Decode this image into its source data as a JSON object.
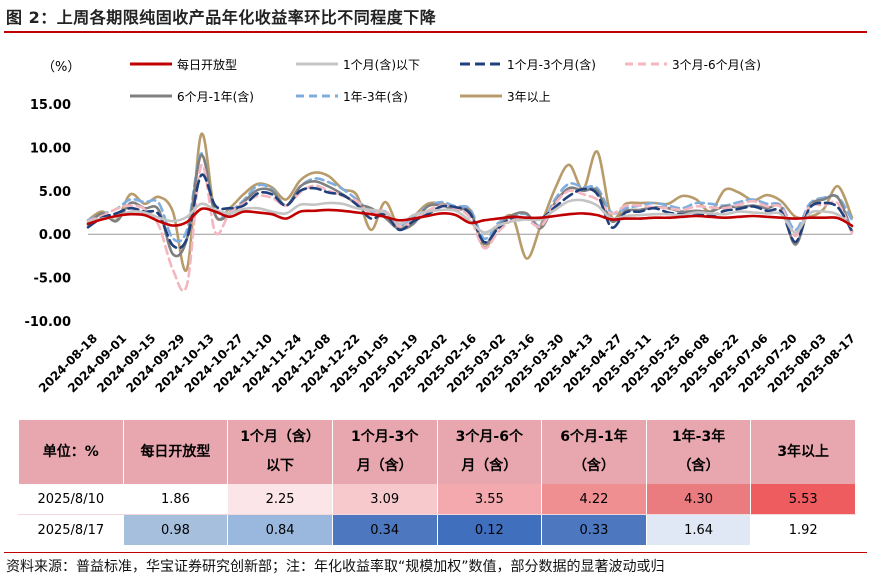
{
  "figure_title": "图 2：上周各期限纯固收产品年化收益率环比不同程度下降",
  "footer": "资料来源：普益标准，华宝证券研究创新部；注：年化收益率取“规模加权”数值，部分数据的显著波动或归",
  "colors": {
    "accent": "#c00000",
    "header_bg": "#e8a7ae",
    "row1_bg": [
      "#ffffff",
      "#fbe5e8",
      "#f7c9cc",
      "#f3a9ae",
      "#ef8f92",
      "#ea7b7f",
      "#ee5c60"
    ],
    "row2_bg": [
      "#a6bfdd",
      "#9ab8de",
      "#4d78bf",
      "#3f6fbd",
      "#4d78bf",
      "#dfe8f4",
      "#ffffff"
    ]
  },
  "chart_data": {
    "type": "line",
    "ylabel": "（%）",
    "ylim": [
      -10,
      15
    ],
    "yticks": [
      "15.00",
      "10.00",
      "5.00",
      "0.00",
      "-5.00",
      "-10.00"
    ],
    "x_tick_labels": [
      "2024-08-18",
      "2024-09-01",
      "2024-09-15",
      "2024-09-29",
      "2024-10-13",
      "2024-10-27",
      "2024-11-10",
      "2024-11-24",
      "2024-12-08",
      "2024-12-22",
      "2025-01-05",
      "2025-01-19",
      "2025-02-02",
      "2025-02-16",
      "2025-03-02",
      "2025-03-16",
      "2025-03-30",
      "2025-04-13",
      "2025-04-27",
      "2025-05-11",
      "2025-05-25",
      "2025-06-08",
      "2025-06-22",
      "2025-07-06",
      "2025-07-20",
      "2025-08-03",
      "2025-08-17"
    ],
    "legend_position": "top",
    "grid": false,
    "series": [
      {
        "name": "每日开放型",
        "color": "#c00000",
        "dash": "solid",
        "values": [
          1.2,
          1.7,
          2.1,
          2.3,
          2.2,
          1.5,
          1.0,
          1.4,
          2.9,
          2.6,
          2.0,
          2.6,
          2.5,
          2.3,
          1.8,
          2.6,
          2.7,
          2.8,
          2.7,
          2.5,
          2.3,
          2.0,
          1.6,
          1.8,
          2.1,
          2.4,
          2.2,
          1.3,
          1.6,
          1.8,
          2.0,
          1.9,
          1.9,
          2.1,
          2.3,
          2.4,
          2.2,
          1.7,
          1.8,
          1.8,
          1.9,
          1.9,
          2.0,
          2.1,
          2.0,
          1.9,
          2.0,
          2.1,
          2.0,
          1.9,
          1.8,
          1.9,
          1.9,
          1.86,
          0.98
        ]
      },
      {
        "name": "1个月(含)以下",
        "color": "#c4c4c4",
        "dash": "solid",
        "values": [
          1.4,
          1.8,
          2.0,
          2.6,
          2.5,
          1.9,
          1.5,
          2.0,
          3.5,
          2.8,
          2.4,
          2.9,
          3.0,
          2.6,
          2.4,
          3.4,
          3.4,
          3.6,
          3.5,
          3.0,
          2.8,
          2.5,
          1.2,
          2.2,
          2.6,
          2.8,
          2.7,
          1.5,
          0.2,
          1.0,
          1.5,
          1.7,
          1.7,
          2.8,
          3.8,
          3.9,
          3.3,
          1.8,
          2.1,
          2.2,
          2.3,
          2.3,
          2.2,
          2.5,
          2.4,
          2.3,
          2.6,
          2.5,
          2.4,
          2.3,
          0.2,
          2.4,
          2.6,
          2.25,
          0.84
        ]
      },
      {
        "name": "1个月-3个月(含)",
        "color": "#1f3f7d",
        "dash": "10,5",
        "values": [
          0.8,
          1.9,
          2.4,
          3.0,
          2.6,
          2.3,
          -1.3,
          -0.5,
          6.8,
          3.3,
          3.0,
          3.3,
          4.7,
          4.6,
          3.3,
          5.0,
          5.3,
          4.8,
          4.5,
          3.4,
          1.8,
          2.3,
          0.5,
          1.5,
          2.3,
          3.2,
          3.1,
          2.4,
          -0.9,
          0.7,
          1.9,
          1.9,
          1.8,
          3.1,
          4.4,
          5.2,
          4.6,
          0.8,
          2.5,
          2.6,
          3.0,
          2.5,
          2.3,
          2.4,
          2.1,
          2.7,
          2.9,
          3.2,
          2.7,
          2.6,
          -0.9,
          3.0,
          3.6,
          3.09,
          0.34
        ]
      },
      {
        "name": "3个月-6个月(含)",
        "color": "#f4b6bf",
        "dash": "8,5",
        "values": [
          1.5,
          2.1,
          2.9,
          3.3,
          2.9,
          1.0,
          -4.1,
          -5.8,
          7.9,
          0.2,
          2.4,
          3.5,
          4.4,
          4.2,
          3.3,
          4.8,
          5.6,
          5.0,
          4.4,
          3.8,
          2.4,
          2.7,
          0.9,
          1.6,
          2.7,
          3.3,
          3.0,
          1.9,
          -1.6,
          0.3,
          1.6,
          1.7,
          0.9,
          3.5,
          5.0,
          4.6,
          4.0,
          2.4,
          3.3,
          3.3,
          3.1,
          3.0,
          2.8,
          3.2,
          3.1,
          3.0,
          3.4,
          3.8,
          3.2,
          3.1,
          -0.2,
          3.2,
          3.3,
          3.55,
          0.12
        ]
      },
      {
        "name": "6个月-1年(含)",
        "color": "#808080",
        "dash": "solid",
        "values": [
          1.1,
          2.4,
          1.5,
          3.6,
          3.0,
          2.8,
          -2.3,
          -0.5,
          9.1,
          2.2,
          2.3,
          3.7,
          5.1,
          5.0,
          3.3,
          5.5,
          6.1,
          5.5,
          4.6,
          3.5,
          3.0,
          1.9,
          0.6,
          1.2,
          3.2,
          3.3,
          2.8,
          2.6,
          -1.1,
          0.9,
          2.2,
          2.4,
          0.7,
          3.6,
          5.3,
          5.0,
          5.0,
          1.5,
          2.7,
          2.8,
          3.1,
          3.0,
          2.6,
          2.7,
          2.6,
          3.2,
          3.1,
          3.3,
          3.0,
          3.1,
          -1.2,
          3.2,
          4.0,
          4.22,
          0.33
        ]
      },
      {
        "name": "1年-3年(含)",
        "color": "#7eaee0",
        "dash": "8,5",
        "values": [
          1.6,
          2.3,
          2.9,
          4.0,
          3.7,
          3.6,
          -0.5,
          0.5,
          9.3,
          2.2,
          2.6,
          3.9,
          5.6,
          5.2,
          3.3,
          5.5,
          6.4,
          6.0,
          5.2,
          4.0,
          2.5,
          2.6,
          1.0,
          2.0,
          3.2,
          3.7,
          3.2,
          2.9,
          -0.5,
          1.3,
          2.0,
          2.3,
          1.0,
          4.0,
          5.8,
          5.4,
          5.3,
          2.5,
          3.0,
          3.3,
          3.6,
          3.3,
          3.0,
          3.6,
          3.5,
          3.3,
          3.7,
          4.0,
          3.5,
          3.3,
          0.5,
          3.5,
          4.2,
          4.3,
          1.64
        ]
      },
      {
        "name": "3年以上",
        "color": "#b89b6b",
        "dash": "solid",
        "values": [
          1.6,
          2.6,
          1.6,
          4.6,
          3.5,
          4.3,
          2.6,
          -4.0,
          11.5,
          2.2,
          3.0,
          4.6,
          5.8,
          5.4,
          4.0,
          6.2,
          7.1,
          6.7,
          5.2,
          4.5,
          0.5,
          3.7,
          0.8,
          2.0,
          3.5,
          3.5,
          3.0,
          2.8,
          -1.5,
          1.0,
          2.0,
          -2.8,
          1.0,
          5.2,
          8.0,
          5.2,
          9.5,
          2.0,
          3.5,
          3.6,
          3.6,
          3.5,
          4.4,
          4.0,
          2.6,
          5.1,
          4.8,
          3.9,
          4.5,
          3.8,
          2.0,
          2.0,
          2.9,
          5.53,
          1.92
        ]
      }
    ]
  },
  "table": {
    "header": [
      [
        "单位：%"
      ],
      [
        "每日开放型"
      ],
      [
        "1个月（含）",
        "以下"
      ],
      [
        "1个月-3个",
        "月（含）"
      ],
      [
        "3个月-6个",
        "月（含）"
      ],
      [
        "6个月-1年",
        "（含）"
      ],
      [
        "1年-3年",
        "（含）"
      ],
      [
        "3年以上"
      ]
    ],
    "rows": [
      {
        "date": "2025/8/10",
        "values": [
          "1.86",
          "2.25",
          "3.09",
          "3.55",
          "4.22",
          "4.30",
          "5.53"
        ]
      },
      {
        "date": "2025/8/17",
        "values": [
          "0.98",
          "0.84",
          "0.34",
          "0.12",
          "0.33",
          "1.64",
          "1.92"
        ]
      }
    ]
  }
}
